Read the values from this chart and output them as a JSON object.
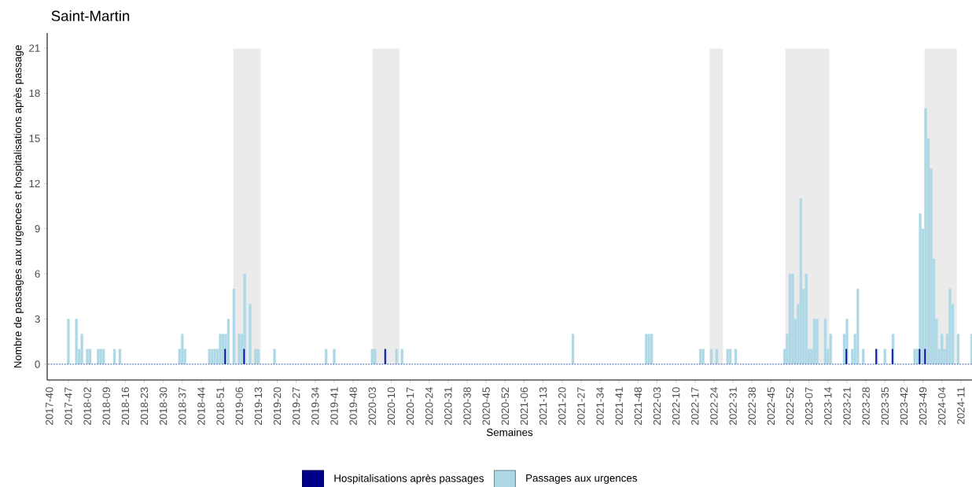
{
  "chart_data": {
    "type": "bar",
    "title": "Saint-Martin",
    "xlabel": "Semaines",
    "ylabel": "Nombre de passages aux urgences et hospitalisations après passage",
    "ylim": [
      -1.05,
      22
    ],
    "yticks": [
      0,
      3,
      6,
      9,
      12,
      15,
      18,
      21
    ],
    "categories": [
      "2017-40",
      null,
      null,
      null,
      null,
      null,
      null,
      "2017-47",
      null,
      null,
      null,
      null,
      null,
      null,
      "2018-02",
      null,
      null,
      null,
      null,
      null,
      null,
      "2018-09",
      null,
      null,
      null,
      null,
      null,
      null,
      "2018-16",
      null,
      null,
      null,
      null,
      null,
      null,
      "2018-23",
      null,
      null,
      null,
      null,
      null,
      null,
      "2018-30",
      null,
      null,
      null,
      null,
      null,
      null,
      "2018-37",
      null,
      null,
      null,
      null,
      null,
      null,
      "2018-44",
      null,
      null,
      null,
      null,
      null,
      null,
      "2018-51",
      null,
      null,
      null,
      null,
      null,
      null,
      "2019-06",
      null,
      null,
      null,
      null,
      null,
      null,
      "2019-13",
      null,
      null,
      null,
      null,
      null,
      null,
      "2019-20",
      null,
      null,
      null,
      null,
      null,
      null,
      "2019-27",
      null,
      null,
      null,
      null,
      null,
      null,
      "2019-34",
      null,
      null,
      null,
      null,
      null,
      null,
      "2019-41",
      null,
      null,
      null,
      null,
      null,
      null,
      "2019-48",
      null,
      null,
      null,
      null,
      null,
      null,
      "2020-03",
      null,
      null,
      null,
      null,
      null,
      null,
      "2020-10",
      null,
      null,
      null,
      null,
      null,
      null,
      "2020-17",
      null,
      null,
      null,
      null,
      null,
      null,
      "2020-24",
      null,
      null,
      null,
      null,
      null,
      null,
      "2020-31",
      null,
      null,
      null,
      null,
      null,
      null,
      "2020-38",
      null,
      null,
      null,
      null,
      null,
      null,
      "2020-45",
      null,
      null,
      null,
      null,
      null,
      null,
      "2020-52",
      null,
      null,
      null,
      null,
      null,
      null,
      "2021-06",
      null,
      null,
      null,
      null,
      null,
      null,
      "2021-13",
      null,
      null,
      null,
      null,
      null,
      null,
      "2021-20",
      null,
      null,
      null,
      null,
      null,
      null,
      "2021-27",
      null,
      null,
      null,
      null,
      null,
      null,
      "2021-34",
      null,
      null,
      null,
      null,
      null,
      null,
      "2021-41",
      null,
      null,
      null,
      null,
      null,
      null,
      "2021-48",
      null,
      null,
      null,
      null,
      null,
      null,
      "2022-03",
      null,
      null,
      null,
      null,
      null,
      null,
      "2022-10",
      null,
      null,
      null,
      null,
      null,
      null,
      "2022-17",
      null,
      null,
      null,
      null,
      null,
      null,
      "2022-24",
      null,
      null,
      null,
      null,
      null,
      null,
      "2022-31",
      null,
      null,
      null,
      null,
      null,
      null,
      "2022-38",
      null,
      null,
      null,
      null,
      null,
      null,
      "2022-45",
      null,
      null,
      null,
      null,
      null,
      null,
      "2022-52",
      null,
      null,
      null,
      null,
      null,
      null,
      "2023-07",
      null,
      null,
      null,
      null,
      null,
      null,
      "2023-14",
      null,
      null,
      null,
      null,
      null,
      null,
      "2023-21",
      null,
      null,
      null,
      null,
      null,
      null,
      "2023-28",
      null,
      null,
      null,
      null,
      null,
      null,
      "2023-35",
      null,
      null,
      null,
      null,
      null,
      null,
      "2023-42",
      null,
      null,
      null,
      null,
      null,
      null,
      "2023-49",
      null,
      null,
      null,
      null,
      null,
      null,
      "2024-04",
      null,
      null,
      null,
      null,
      null,
      null,
      "2024-11",
      null,
      null,
      null,
      null
    ],
    "legend": "bottom",
    "series": [
      {
        "name": "Hospitalisations après passages",
        "color": "#00008b",
        "values": [
          0,
          0,
          0,
          0,
          0,
          0,
          0,
          0,
          0,
          0,
          0,
          0,
          0,
          0,
          0,
          0,
          0,
          0,
          0,
          0,
          0,
          0,
          0,
          0,
          0,
          0,
          0,
          0,
          0,
          0,
          0,
          0,
          0,
          0,
          0,
          0,
          0,
          0,
          0,
          0,
          0,
          0,
          0,
          0,
          0,
          0,
          0,
          0,
          0,
          0,
          0,
          0,
          0,
          0,
          0,
          0,
          0,
          0,
          0,
          0,
          0,
          0,
          0,
          0,
          0,
          1,
          0,
          0,
          0,
          0,
          0,
          0,
          1,
          0,
          0,
          0,
          0,
          0,
          0,
          0,
          0,
          0,
          0,
          0,
          0,
          0,
          0,
          0,
          0,
          0,
          0,
          0,
          0,
          0,
          0,
          0,
          0,
          0,
          0,
          0,
          0,
          0,
          0,
          0,
          0,
          0,
          0,
          0,
          0,
          0,
          0,
          0,
          0,
          0,
          0,
          0,
          0,
          0,
          0,
          0,
          0,
          0,
          0,
          0,
          1,
          0,
          0,
          0,
          0,
          0,
          0,
          0,
          0,
          0,
          0,
          0,
          0,
          0,
          0,
          0,
          0,
          0,
          0,
          0,
          0,
          0,
          0,
          0,
          0,
          0,
          0,
          0,
          0,
          0,
          0,
          0,
          0,
          0,
          0,
          0,
          0,
          0,
          0,
          0,
          0,
          0,
          0,
          0,
          0,
          0,
          0,
          0,
          0,
          0,
          0,
          0,
          0,
          0,
          0,
          0,
          0,
          0,
          0,
          0,
          0,
          0,
          0,
          0,
          0,
          0,
          0,
          0,
          0,
          0,
          0,
          0,
          0,
          0,
          0,
          0,
          0,
          0,
          0,
          0,
          0,
          0,
          0,
          0,
          0,
          0,
          0,
          0,
          0,
          0,
          0,
          0,
          0,
          0,
          0,
          0,
          0,
          0,
          0,
          0,
          0,
          0,
          0,
          0,
          0,
          0,
          0,
          0,
          0,
          0,
          0,
          0,
          0,
          0,
          0,
          0,
          0,
          0,
          0,
          0,
          0,
          0,
          0,
          0,
          0,
          0,
          0,
          0,
          0,
          0,
          0,
          0,
          0,
          0,
          0,
          0,
          0,
          0,
          0,
          0,
          0,
          0,
          0,
          0,
          0,
          0,
          0,
          0,
          0,
          0,
          0,
          0,
          0,
          0,
          0,
          0,
          0,
          0,
          0,
          0,
          0,
          0,
          0,
          0,
          0,
          0,
          0,
          0,
          0,
          0,
          1,
          0,
          0,
          0,
          0,
          0,
          0,
          0,
          0,
          0,
          0,
          1,
          0,
          0,
          0,
          0,
          0,
          1,
          0,
          0,
          0,
          0,
          0,
          0,
          0,
          0,
          0,
          1,
          0,
          1,
          0,
          0,
          0,
          0,
          0,
          0,
          0,
          0,
          0,
          0,
          0,
          0,
          0,
          0,
          0,
          0,
          0
        ]
      },
      {
        "name": "Passages aux urgences",
        "color": "#add8e6",
        "values": [
          0,
          0,
          0,
          0,
          0,
          0,
          0,
          3,
          0,
          0,
          3,
          1,
          2,
          0,
          1,
          1,
          0,
          0,
          1,
          1,
          1,
          0,
          0,
          0,
          1,
          0,
          1,
          0,
          0,
          0,
          0,
          0,
          0,
          0,
          0,
          0,
          0,
          0,
          0,
          0,
          0,
          0,
          0,
          0,
          0,
          0,
          0,
          0,
          1,
          2,
          1,
          0,
          0,
          0,
          0,
          0,
          0,
          0,
          0,
          1,
          1,
          1,
          1,
          2,
          2,
          2,
          3,
          0,
          5,
          0,
          2,
          2,
          6,
          0,
          4,
          0,
          1,
          1,
          0,
          0,
          0,
          0,
          0,
          1,
          0,
          0,
          0,
          0,
          0,
          0,
          0,
          0,
          0,
          0,
          0,
          0,
          0,
          0,
          0,
          0,
          0,
          0,
          1,
          0,
          0,
          1,
          0,
          0,
          0,
          0,
          0,
          0,
          0,
          0,
          0,
          0,
          0,
          0,
          0,
          1,
          1,
          0,
          0,
          0,
          1,
          0,
          0,
          0,
          1,
          0,
          1,
          0,
          0,
          0,
          0,
          0,
          0,
          0,
          0,
          0,
          0,
          0,
          0,
          0,
          0,
          0,
          0,
          0,
          0,
          0,
          0,
          0,
          0,
          0,
          0,
          0,
          0,
          0,
          0,
          0,
          0,
          0,
          0,
          0,
          0,
          0,
          0,
          0,
          0,
          0,
          0,
          0,
          0,
          0,
          0,
          0,
          0,
          0,
          0,
          0,
          0,
          0,
          0,
          0,
          0,
          0,
          0,
          0,
          0,
          0,
          0,
          0,
          0,
          2,
          0,
          0,
          0,
          0,
          0,
          0,
          0,
          0,
          0,
          0,
          0,
          0,
          0,
          0,
          0,
          0,
          0,
          0,
          0,
          0,
          0,
          0,
          0,
          0,
          0,
          0,
          2,
          2,
          2,
          0,
          0,
          0,
          0,
          0,
          0,
          0,
          0,
          0,
          0,
          0,
          0,
          0,
          0,
          0,
          0,
          0,
          1,
          1,
          0,
          0,
          1,
          0,
          1,
          0,
          0,
          0,
          1,
          1,
          0,
          1,
          0,
          0,
          0,
          0,
          0,
          0,
          0,
          0,
          0,
          0,
          0,
          0,
          0,
          0,
          0,
          0,
          0,
          1,
          2,
          6,
          6,
          3,
          4,
          11,
          5,
          6,
          1,
          1,
          3,
          3,
          0,
          0,
          3,
          1,
          2,
          0,
          0,
          0,
          0,
          2,
          3,
          0,
          1,
          2,
          5,
          0,
          1,
          0,
          0,
          0,
          0,
          1,
          0,
          0,
          1,
          0,
          0,
          2,
          0,
          0,
          0,
          0,
          0,
          0,
          0,
          1,
          1,
          10,
          9,
          17,
          15,
          13,
          7,
          3,
          1,
          2,
          1,
          2,
          5,
          4,
          0,
          2,
          0,
          0,
          0,
          0,
          2
        ]
      }
    ]
  }
}
